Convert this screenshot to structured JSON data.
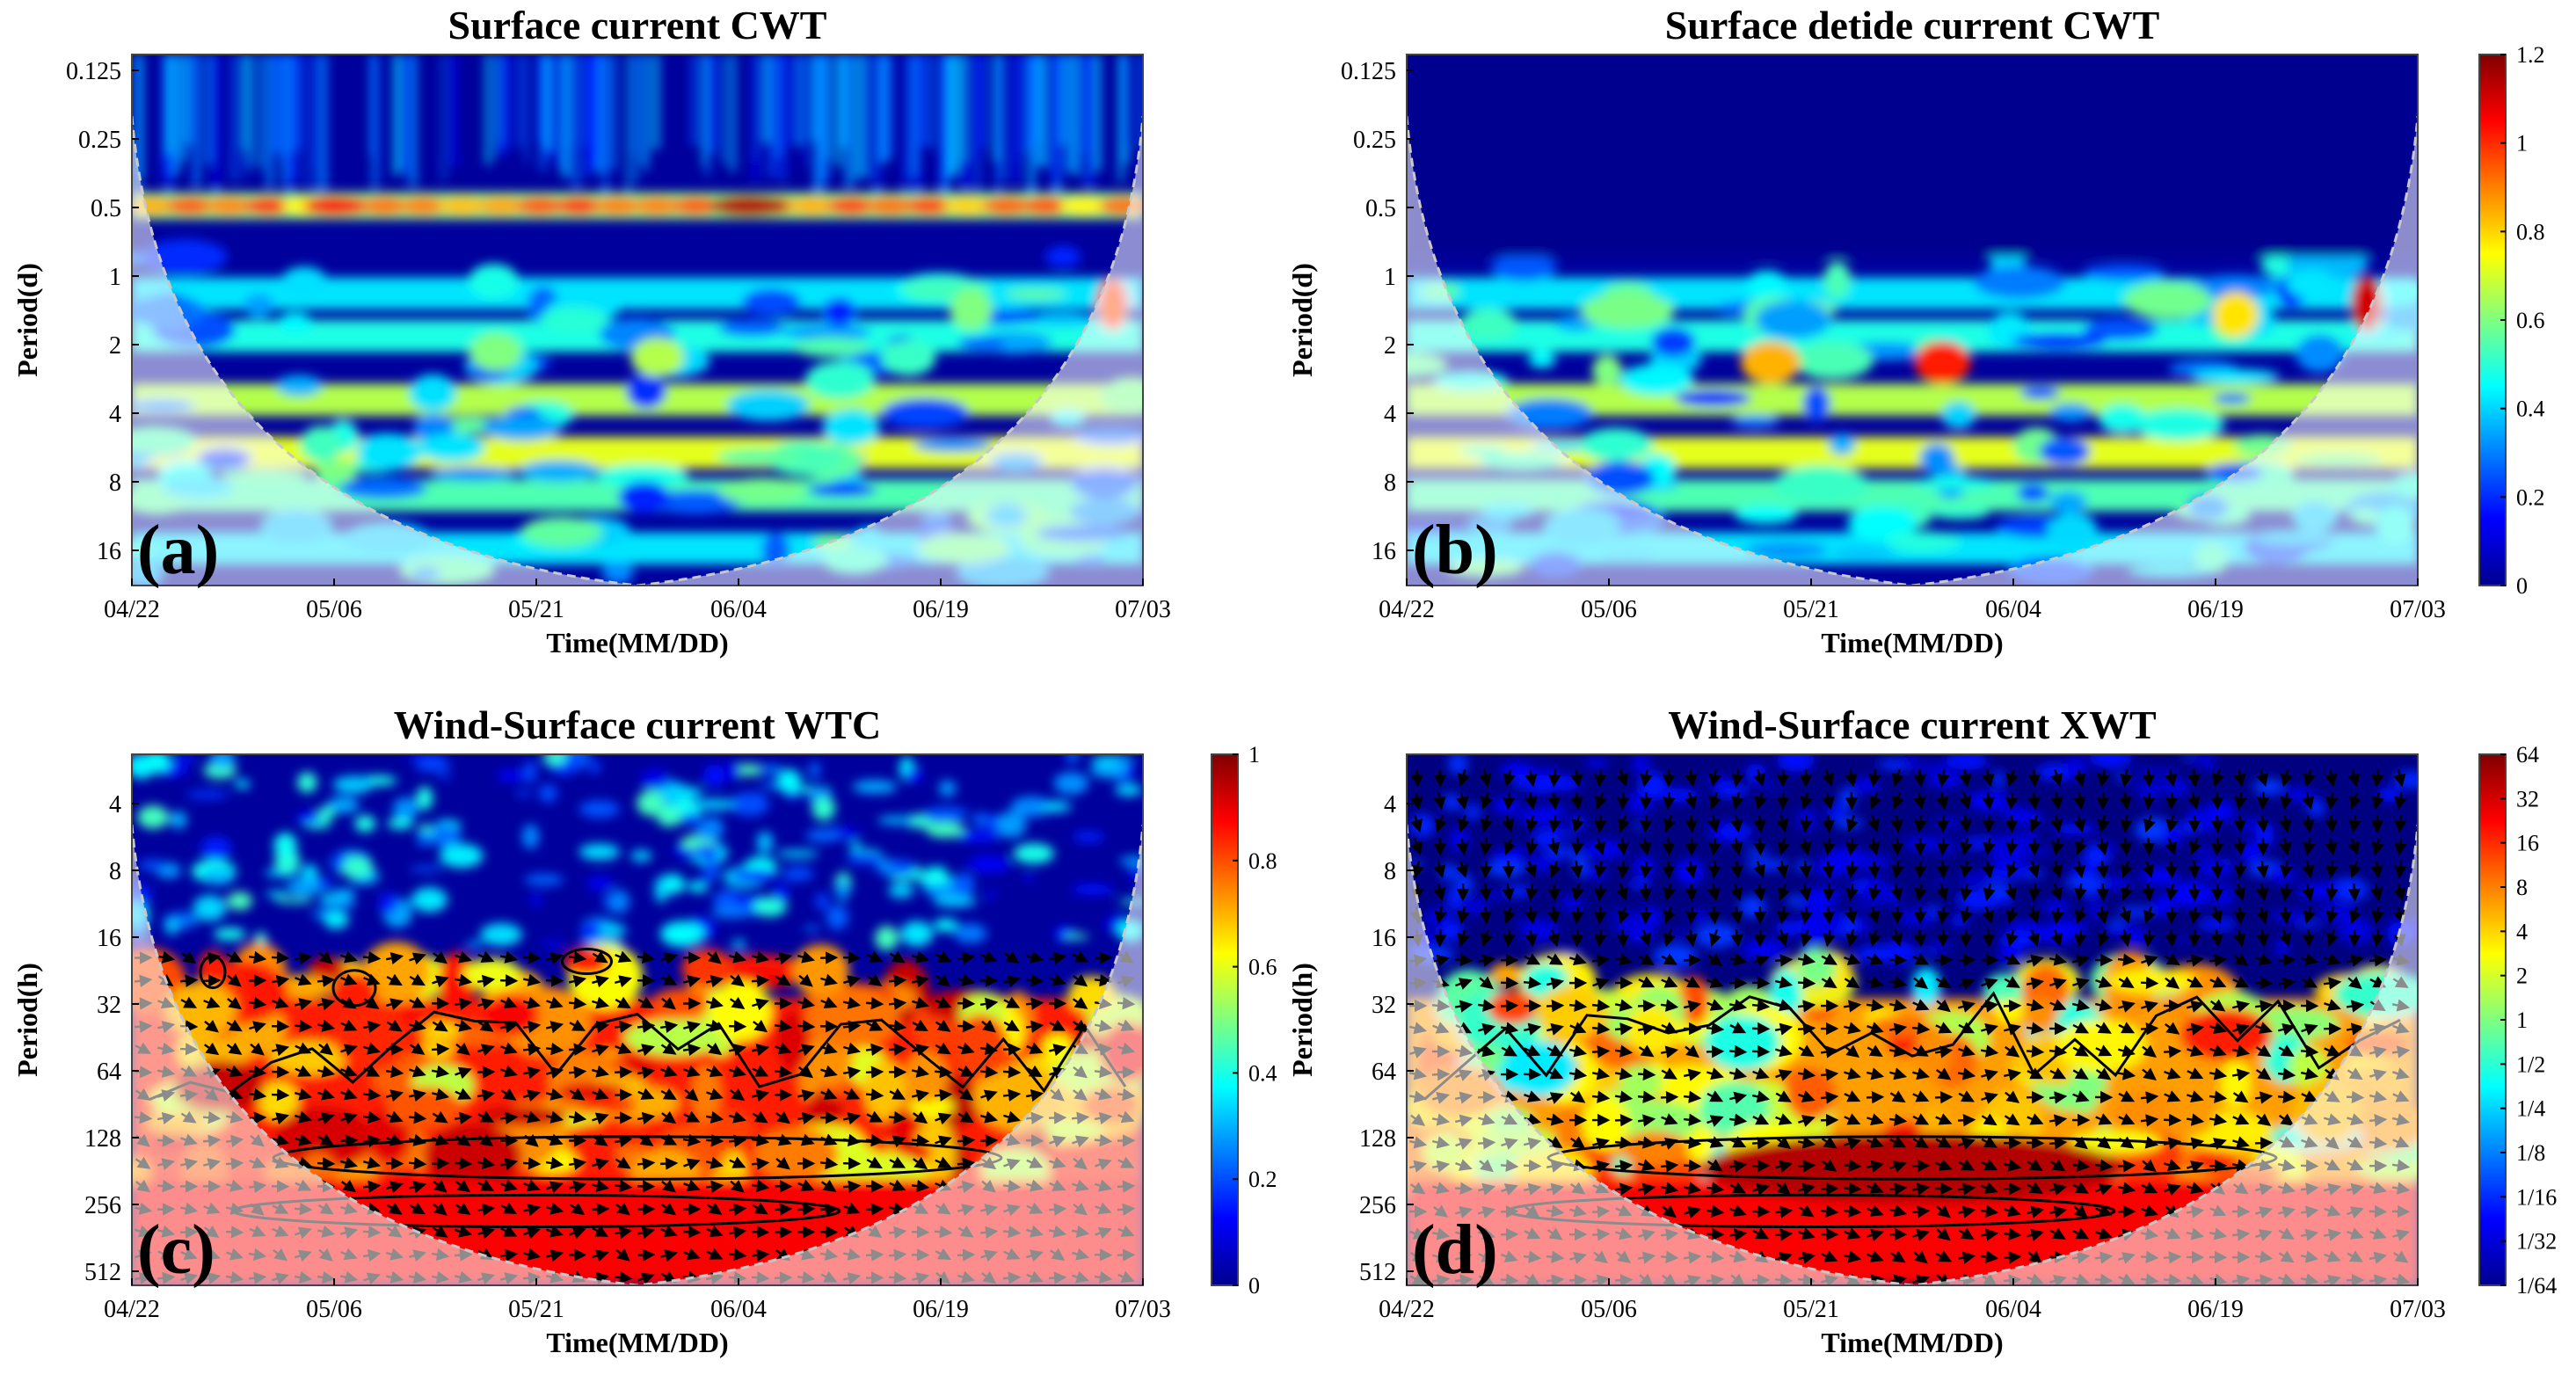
{
  "figure": {
    "panels": [
      {
        "id": "a",
        "title": "Surface current CWT",
        "panel_label": "(a)",
        "xlabel": "Time(MM/DD)",
        "ylabel": "Period(d)",
        "kind": "cwt",
        "has_colorbar": false
      },
      {
        "id": "b",
        "title": "Surface detide current CWT",
        "panel_label": "(b)",
        "xlabel": "Time(MM/DD)",
        "ylabel": "Period(d)",
        "kind": "cwt_detide",
        "has_colorbar": true
      },
      {
        "id": "c",
        "title": "Wind-Surface current WTC",
        "panel_label": "(c)",
        "xlabel": "Time(MM/DD)",
        "ylabel": "Period(h)",
        "kind": "wtc",
        "has_colorbar": true
      },
      {
        "id": "d",
        "title": "Wind-Surface current XWT",
        "panel_label": "(d)",
        "xlabel": "Time(MM/DD)",
        "ylabel": "Period(h)",
        "kind": "xwt",
        "has_colorbar": true
      }
    ]
  },
  "chart_data": [
    {
      "type": "heatmap",
      "title": "Surface current CWT",
      "xlabel": "Time(MM/DD)",
      "ylabel": "Period(d)",
      "x_ticks": [
        "04/22",
        "05/06",
        "05/21",
        "06/04",
        "06/19",
        "07/03"
      ],
      "y_ticks": [
        "0.125",
        "0.25",
        "0.5",
        "1",
        "2",
        "4",
        "8",
        "16"
      ],
      "y_scale": "log2",
      "y_reversed": true,
      "colormap": "jet",
      "color_range": [
        0,
        1.2
      ],
      "cone_of_influence": true,
      "features": [
        {
          "time": "continuous",
          "period_d": 0.5,
          "level": "high, peak near 06/04"
        },
        {
          "time": "06/30",
          "period_d": 1.5,
          "level": 0.9
        }
      ]
    },
    {
      "type": "heatmap",
      "title": "Surface detide current CWT",
      "xlabel": "Time(MM/DD)",
      "ylabel": "Period(d)",
      "x_ticks": [
        "04/22",
        "05/06",
        "05/21",
        "06/04",
        "06/19",
        "07/03"
      ],
      "y_ticks": [
        "0.125",
        "0.25",
        "0.5",
        "1",
        "2",
        "4",
        "8",
        "16"
      ],
      "y_scale": "log2",
      "y_reversed": true,
      "colormap": "jet",
      "colorbar_ticks": [
        "0",
        "0.2",
        "0.4",
        "0.6",
        "0.8",
        "1",
        "1.2"
      ],
      "color_range": [
        0,
        1.2
      ],
      "cone_of_influence": true,
      "features": [
        {
          "time": "05/28",
          "period_d": 2.5,
          "level": 0.85
        },
        {
          "time": "06/30",
          "period_d": 1.5,
          "level": 0.95
        },
        {
          "time": "05/21",
          "period_d": 2.5,
          "level": 0.7
        }
      ]
    },
    {
      "type": "heatmap",
      "title": "Wind-Surface current WTC",
      "xlabel": "Time(MM/DD)",
      "ylabel": "Period(h)",
      "x_ticks": [
        "04/22",
        "05/06",
        "05/21",
        "06/04",
        "06/19",
        "07/03"
      ],
      "y_ticks": [
        "4",
        "8",
        "16",
        "32",
        "64",
        "128",
        "256",
        "512"
      ],
      "y_scale": "log2",
      "y_reversed": true,
      "colormap": "jet",
      "colorbar_ticks": [
        "0",
        "0.2",
        "0.4",
        "0.6",
        "0.8",
        "1"
      ],
      "color_range": [
        0,
        1
      ],
      "phase_arrows": true,
      "significance_contours": true,
      "cone_of_influence": true
    },
    {
      "type": "heatmap",
      "title": "Wind-Surface current XWT",
      "xlabel": "Time(MM/DD)",
      "ylabel": "Period(h)",
      "x_ticks": [
        "04/22",
        "05/06",
        "05/21",
        "06/04",
        "06/19",
        "07/03"
      ],
      "y_ticks": [
        "4",
        "8",
        "16",
        "32",
        "64",
        "128",
        "256",
        "512"
      ],
      "y_scale": "log2",
      "y_reversed": true,
      "colormap": "jet",
      "colorbar_ticks": [
        "1/64",
        "1/32",
        "1/16",
        "1/8",
        "1/4",
        "1/2",
        "1",
        "2",
        "4",
        "8",
        "16",
        "32",
        "64"
      ],
      "color_scale": "log2",
      "phase_arrows": true,
      "significance_contours": true,
      "cone_of_influence": true
    }
  ]
}
